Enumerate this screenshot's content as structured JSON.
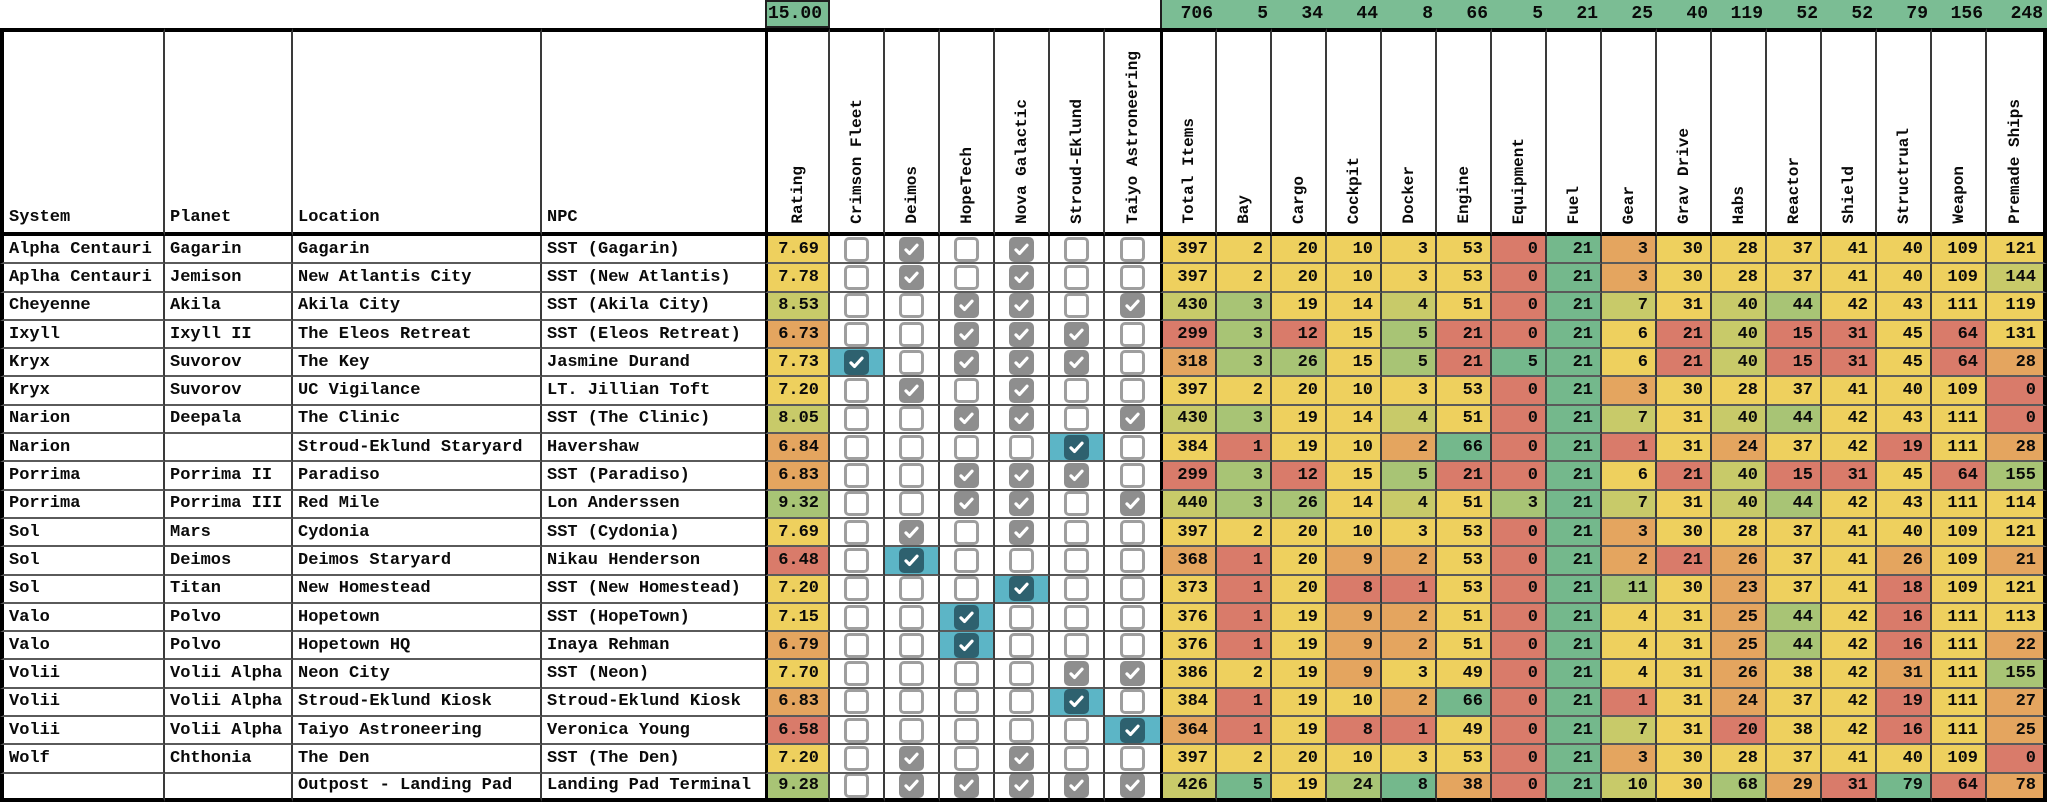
{
  "summary_row": {
    "rating_total": "15.00",
    "item_totals": [
      "706",
      "5",
      "34",
      "44",
      "8",
      "66",
      "5",
      "21",
      "25",
      "40",
      "119",
      "52",
      "52",
      "79",
      "156",
      "248"
    ]
  },
  "header": {
    "text_columns": [
      "System",
      "Planet",
      "Location",
      "NPC"
    ],
    "rating_label": "Rating",
    "vendor_columns": [
      "Crimson Fleet",
      "Deimos",
      "HopeTech",
      "Nova Galactic",
      "Stroud-Eklund",
      "Taiyo Astroneering"
    ],
    "item_columns": [
      "Total Items",
      "Bay",
      "Cargo",
      "Cockpit",
      "Docker",
      "Engine",
      "Equipment",
      "Fuel",
      "Gear",
      "Grav Drive",
      "Habs",
      "Reactor",
      "Shield",
      "Structrual",
      "Weapon",
      "Premade Ships"
    ]
  },
  "colors": {
    "g": "#74b88c",
    "lg": "#a8c475",
    "yg": "#c8ca69",
    "y": "#eed05e",
    "o": "#e4a55f",
    "r": "#d97b6a",
    "strip": "#7bbd94",
    "teal_cell": "#5cb5c6",
    "teal_box": "#2e616f",
    "checked_box": "#8e8e8e",
    "box_border": "#9e9e9e"
  },
  "rows": [
    {
      "system": "Alpha Centauri",
      "planet": "Gagarin",
      "location": "Gagarin",
      "npc": "SST (Gagarin)",
      "rating": "7.69",
      "rating_color": "y",
      "vendors": [
        "u",
        "c",
        "u",
        "c",
        "u",
        "u"
      ],
      "items": [
        "397",
        "2",
        "20",
        "10",
        "3",
        "53",
        "0",
        "21",
        "3",
        "30",
        "28",
        "37",
        "41",
        "40",
        "109",
        "121"
      ],
      "item_colors": [
        "y",
        "y",
        "y",
        "y",
        "y",
        "y",
        "r",
        "g",
        "o",
        "y",
        "y",
        "y",
        "y",
        "y",
        "y",
        "y"
      ]
    },
    {
      "system": "Aplha Centauri",
      "planet": "Jemison",
      "location": "New Atlantis City",
      "npc": "SST (New Atlantis)",
      "rating": "7.78",
      "rating_color": "y",
      "vendors": [
        "u",
        "c",
        "u",
        "c",
        "u",
        "u"
      ],
      "items": [
        "397",
        "2",
        "20",
        "10",
        "3",
        "53",
        "0",
        "21",
        "3",
        "30",
        "28",
        "37",
        "41",
        "40",
        "109",
        "144"
      ],
      "item_colors": [
        "y",
        "y",
        "y",
        "y",
        "y",
        "y",
        "r",
        "g",
        "o",
        "y",
        "y",
        "y",
        "y",
        "y",
        "y",
        "yg"
      ]
    },
    {
      "system": "Cheyenne",
      "planet": "Akila",
      "location": "Akila City",
      "npc": "SST (Akila City)",
      "rating": "8.53",
      "rating_color": "yg",
      "vendors": [
        "u",
        "u",
        "c",
        "c",
        "u",
        "c"
      ],
      "items": [
        "430",
        "3",
        "19",
        "14",
        "4",
        "51",
        "0",
        "21",
        "7",
        "31",
        "40",
        "44",
        "42",
        "43",
        "111",
        "119"
      ],
      "item_colors": [
        "yg",
        "lg",
        "y",
        "y",
        "yg",
        "y",
        "r",
        "g",
        "yg",
        "y",
        "yg",
        "lg",
        "y",
        "y",
        "y",
        "y"
      ]
    },
    {
      "system": "Ixyll",
      "planet": "Ixyll II",
      "location": "The Eleos Retreat",
      "npc": "SST (Eleos Retreat)",
      "rating": "6.73",
      "rating_color": "o",
      "vendors": [
        "u",
        "u",
        "c",
        "c",
        "c",
        "u"
      ],
      "items": [
        "299",
        "3",
        "12",
        "15",
        "5",
        "21",
        "0",
        "21",
        "6",
        "21",
        "40",
        "15",
        "31",
        "45",
        "64",
        "131"
      ],
      "item_colors": [
        "r",
        "lg",
        "r",
        "y",
        "lg",
        "r",
        "r",
        "g",
        "y",
        "r",
        "yg",
        "r",
        "r",
        "y",
        "r",
        "y"
      ]
    },
    {
      "system": "Kryx",
      "planet": "Suvorov",
      "location": "The Key",
      "npc": "Jasmine Durand",
      "rating": "7.73",
      "rating_color": "y",
      "vendors": [
        "t",
        "u",
        "c",
        "c",
        "c",
        "u"
      ],
      "items": [
        "318",
        "3",
        "26",
        "15",
        "5",
        "21",
        "5",
        "21",
        "6",
        "21",
        "40",
        "15",
        "31",
        "45",
        "64",
        "28"
      ],
      "item_colors": [
        "o",
        "lg",
        "lg",
        "y",
        "lg",
        "r",
        "g",
        "g",
        "y",
        "r",
        "yg",
        "r",
        "r",
        "y",
        "r",
        "o"
      ]
    },
    {
      "system": "Kryx",
      "planet": "Suvorov",
      "location": "UC Vigilance",
      "npc": "LT. Jillian Toft",
      "rating": "7.20",
      "rating_color": "y",
      "vendors": [
        "u",
        "c",
        "u",
        "c",
        "u",
        "u"
      ],
      "items": [
        "397",
        "2",
        "20",
        "10",
        "3",
        "53",
        "0",
        "21",
        "3",
        "30",
        "28",
        "37",
        "41",
        "40",
        "109",
        "0"
      ],
      "item_colors": [
        "y",
        "y",
        "y",
        "y",
        "y",
        "y",
        "r",
        "g",
        "o",
        "y",
        "y",
        "y",
        "y",
        "y",
        "y",
        "r"
      ]
    },
    {
      "system": "Narion",
      "planet": "Deepala",
      "location": "The Clinic",
      "npc": "SST (The Clinic)",
      "rating": "8.05",
      "rating_color": "yg",
      "vendors": [
        "u",
        "u",
        "c",
        "c",
        "u",
        "c"
      ],
      "items": [
        "430",
        "3",
        "19",
        "14",
        "4",
        "51",
        "0",
        "21",
        "7",
        "31",
        "40",
        "44",
        "42",
        "43",
        "111",
        "0"
      ],
      "item_colors": [
        "yg",
        "lg",
        "y",
        "y",
        "yg",
        "y",
        "r",
        "g",
        "yg",
        "y",
        "yg",
        "lg",
        "y",
        "y",
        "y",
        "r"
      ]
    },
    {
      "system": "Narion",
      "planet": "",
      "location": "Stroud-Eklund Staryard",
      "npc": "Havershaw",
      "rating": "6.84",
      "rating_color": "o",
      "vendors": [
        "u",
        "u",
        "u",
        "u",
        "t",
        "u"
      ],
      "items": [
        "384",
        "1",
        "19",
        "10",
        "2",
        "66",
        "0",
        "21",
        "1",
        "31",
        "24",
        "37",
        "42",
        "19",
        "111",
        "28"
      ],
      "item_colors": [
        "y",
        "r",
        "y",
        "y",
        "o",
        "g",
        "r",
        "g",
        "r",
        "y",
        "o",
        "y",
        "y",
        "r",
        "y",
        "o"
      ]
    },
    {
      "system": "Porrima",
      "planet": "Porrima II",
      "location": "Paradiso",
      "npc": "SST (Paradiso)",
      "rating": "6.83",
      "rating_color": "o",
      "vendors": [
        "u",
        "u",
        "c",
        "c",
        "c",
        "u"
      ],
      "items": [
        "299",
        "3",
        "12",
        "15",
        "5",
        "21",
        "0",
        "21",
        "6",
        "21",
        "40",
        "15",
        "31",
        "45",
        "64",
        "155"
      ],
      "item_colors": [
        "r",
        "lg",
        "r",
        "y",
        "lg",
        "r",
        "r",
        "g",
        "y",
        "r",
        "yg",
        "r",
        "r",
        "y",
        "r",
        "lg"
      ]
    },
    {
      "system": "Porrima",
      "planet": "Porrima III",
      "location": "Red Mile",
      "npc": "Lon Anderssen",
      "rating": "9.32",
      "rating_color": "lg",
      "vendors": [
        "u",
        "u",
        "c",
        "c",
        "u",
        "c"
      ],
      "items": [
        "440",
        "3",
        "26",
        "14",
        "4",
        "51",
        "3",
        "21",
        "7",
        "31",
        "40",
        "44",
        "42",
        "43",
        "111",
        "114"
      ],
      "item_colors": [
        "yg",
        "lg",
        "lg",
        "y",
        "yg",
        "y",
        "lg",
        "g",
        "yg",
        "y",
        "yg",
        "lg",
        "y",
        "y",
        "y",
        "y"
      ]
    },
    {
      "system": "Sol",
      "planet": "Mars",
      "location": "Cydonia",
      "npc": "SST (Cydonia)",
      "rating": "7.69",
      "rating_color": "y",
      "vendors": [
        "u",
        "c",
        "u",
        "c",
        "u",
        "u"
      ],
      "items": [
        "397",
        "2",
        "20",
        "10",
        "3",
        "53",
        "0",
        "21",
        "3",
        "30",
        "28",
        "37",
        "41",
        "40",
        "109",
        "121"
      ],
      "item_colors": [
        "y",
        "y",
        "y",
        "y",
        "y",
        "y",
        "r",
        "g",
        "o",
        "y",
        "y",
        "y",
        "y",
        "y",
        "y",
        "y"
      ]
    },
    {
      "system": "Sol",
      "planet": "Deimos",
      "location": "Deimos Staryard",
      "npc": "Nikau Henderson",
      "rating": "6.48",
      "rating_color": "r",
      "vendors": [
        "u",
        "t",
        "u",
        "u",
        "u",
        "u"
      ],
      "items": [
        "368",
        "1",
        "20",
        "9",
        "2",
        "53",
        "0",
        "21",
        "2",
        "21",
        "26",
        "37",
        "41",
        "26",
        "109",
        "21"
      ],
      "item_colors": [
        "o",
        "r",
        "y",
        "o",
        "o",
        "y",
        "r",
        "g",
        "o",
        "r",
        "o",
        "y",
        "y",
        "o",
        "y",
        "o"
      ]
    },
    {
      "system": "Sol",
      "planet": "Titan",
      "location": "New Homestead",
      "npc": "SST (New Homestead)",
      "rating": "7.20",
      "rating_color": "y",
      "vendors": [
        "u",
        "u",
        "u",
        "t",
        "u",
        "u"
      ],
      "items": [
        "373",
        "1",
        "20",
        "8",
        "1",
        "53",
        "0",
        "21",
        "11",
        "30",
        "23",
        "37",
        "41",
        "18",
        "109",
        "121"
      ],
      "item_colors": [
        "y",
        "r",
        "y",
        "r",
        "r",
        "y",
        "r",
        "g",
        "lg",
        "y",
        "o",
        "y",
        "y",
        "r",
        "y",
        "y"
      ]
    },
    {
      "system": "Valo",
      "planet": "Polvo",
      "location": "Hopetown",
      "npc": "SST (HopeTown)",
      "rating": "7.15",
      "rating_color": "y",
      "vendors": [
        "u",
        "u",
        "t",
        "u",
        "u",
        "u"
      ],
      "items": [
        "376",
        "1",
        "19",
        "9",
        "2",
        "51",
        "0",
        "21",
        "4",
        "31",
        "25",
        "44",
        "42",
        "16",
        "111",
        "113"
      ],
      "item_colors": [
        "y",
        "r",
        "y",
        "o",
        "o",
        "y",
        "r",
        "g",
        "y",
        "y",
        "o",
        "lg",
        "y",
        "r",
        "y",
        "y"
      ]
    },
    {
      "system": "Valo",
      "planet": "Polvo",
      "location": "Hopetown HQ",
      "npc": "Inaya Rehman",
      "rating": "6.79",
      "rating_color": "o",
      "vendors": [
        "u",
        "u",
        "t",
        "u",
        "u",
        "u"
      ],
      "items": [
        "376",
        "1",
        "19",
        "9",
        "2",
        "51",
        "0",
        "21",
        "4",
        "31",
        "25",
        "44",
        "42",
        "16",
        "111",
        "22"
      ],
      "item_colors": [
        "y",
        "r",
        "y",
        "o",
        "o",
        "y",
        "r",
        "g",
        "y",
        "y",
        "o",
        "lg",
        "y",
        "r",
        "y",
        "o"
      ]
    },
    {
      "system": "Volii",
      "planet": "Volii Alpha",
      "location": "Neon City",
      "npc": "SST (Neon)",
      "rating": "7.70",
      "rating_color": "y",
      "vendors": [
        "u",
        "u",
        "u",
        "u",
        "c",
        "c"
      ],
      "items": [
        "386",
        "2",
        "19",
        "9",
        "3",
        "49",
        "0",
        "21",
        "4",
        "31",
        "26",
        "38",
        "42",
        "31",
        "111",
        "155"
      ],
      "item_colors": [
        "y",
        "y",
        "y",
        "o",
        "y",
        "y",
        "r",
        "g",
        "y",
        "y",
        "o",
        "y",
        "y",
        "o",
        "y",
        "lg"
      ]
    },
    {
      "system": "Volii",
      "planet": "Volii Alpha",
      "location": "Stroud-Eklund Kiosk",
      "npc": "Stroud-Eklund Kiosk",
      "rating": "6.83",
      "rating_color": "o",
      "vendors": [
        "u",
        "u",
        "u",
        "u",
        "t",
        "u"
      ],
      "items": [
        "384",
        "1",
        "19",
        "10",
        "2",
        "66",
        "0",
        "21",
        "1",
        "31",
        "24",
        "37",
        "42",
        "19",
        "111",
        "27"
      ],
      "item_colors": [
        "y",
        "r",
        "y",
        "y",
        "o",
        "g",
        "r",
        "g",
        "r",
        "y",
        "o",
        "y",
        "y",
        "r",
        "y",
        "o"
      ]
    },
    {
      "system": "Volii",
      "planet": "Volii Alpha",
      "location": "Taiyo Astroneering",
      "npc": "Veronica Young",
      "rating": "6.58",
      "rating_color": "r",
      "vendors": [
        "u",
        "u",
        "u",
        "u",
        "u",
        "t"
      ],
      "items": [
        "364",
        "1",
        "19",
        "8",
        "1",
        "49",
        "0",
        "21",
        "7",
        "31",
        "20",
        "38",
        "42",
        "16",
        "111",
        "25"
      ],
      "item_colors": [
        "o",
        "r",
        "y",
        "r",
        "r",
        "y",
        "r",
        "g",
        "yg",
        "y",
        "r",
        "y",
        "y",
        "r",
        "y",
        "o"
      ]
    },
    {
      "system": "Wolf",
      "planet": "Chthonia",
      "location": "The Den",
      "npc": "SST (The Den)",
      "rating": "7.20",
      "rating_color": "y",
      "vendors": [
        "u",
        "c",
        "u",
        "c",
        "u",
        "u"
      ],
      "items": [
        "397",
        "2",
        "20",
        "10",
        "3",
        "53",
        "0",
        "21",
        "3",
        "30",
        "28",
        "37",
        "41",
        "40",
        "109",
        "0"
      ],
      "item_colors": [
        "y",
        "y",
        "y",
        "y",
        "y",
        "y",
        "r",
        "g",
        "o",
        "y",
        "y",
        "y",
        "y",
        "y",
        "y",
        "r"
      ]
    },
    {
      "system": "",
      "planet": "",
      "location": "Outpost - Landing Pad",
      "npc": "Landing Pad Terminal",
      "rating": "9.28",
      "rating_color": "lg",
      "vendors": [
        "u",
        "c",
        "c",
        "c",
        "c",
        "c"
      ],
      "items": [
        "426",
        "5",
        "19",
        "24",
        "8",
        "38",
        "0",
        "21",
        "10",
        "30",
        "68",
        "29",
        "31",
        "79",
        "64",
        "78"
      ],
      "item_colors": [
        "yg",
        "g",
        "y",
        "lg",
        "g",
        "o",
        "r",
        "g",
        "yg",
        "y",
        "lg",
        "o",
        "r",
        "g",
        "r",
        "o"
      ]
    }
  ]
}
